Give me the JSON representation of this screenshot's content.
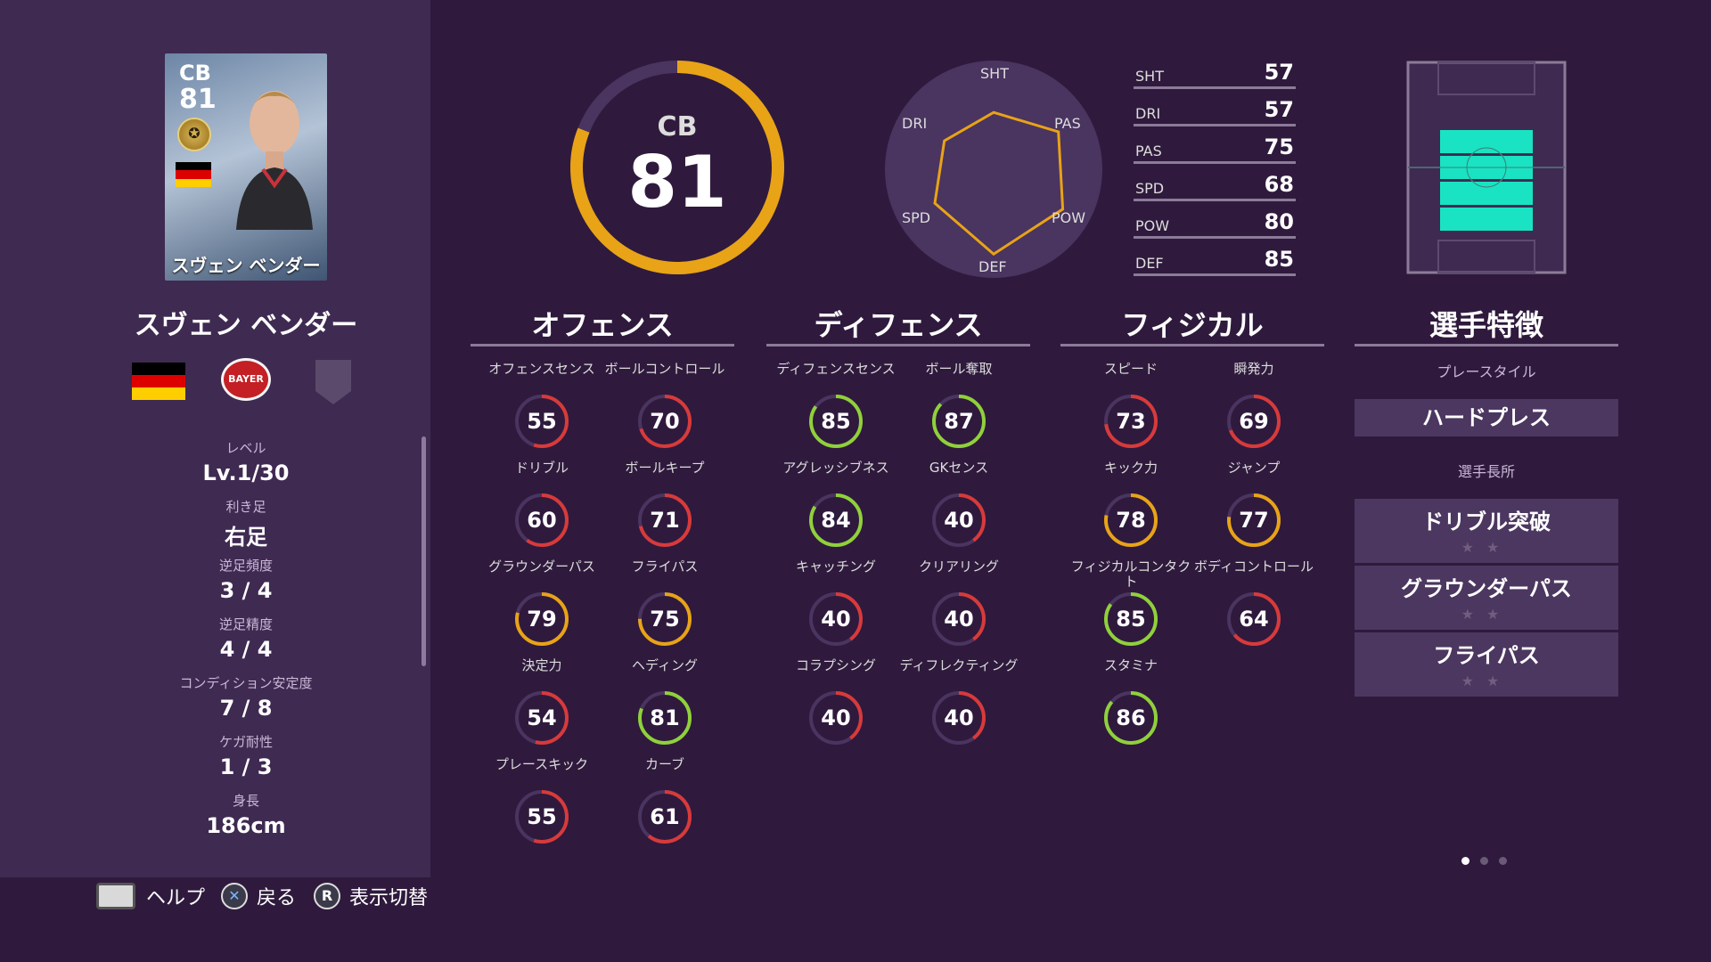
{
  "card": {
    "position": "CB",
    "overall": "81",
    "name": "スヴェン ベンダー",
    "flag_colors": [
      "#000000",
      "#dd0000",
      "#ffce00"
    ]
  },
  "player": {
    "name": "スヴェン ベンダー",
    "club_badge_text": "BAYER",
    "info": [
      {
        "label": "レベル",
        "value": "Lv.1/30"
      },
      {
        "label": "利き足",
        "value": "右足"
      },
      {
        "label": "逆足頻度",
        "value": "3 / 4"
      },
      {
        "label": "逆足精度",
        "value": "4 / 4"
      },
      {
        "label": "コンディション安定度",
        "value": "7 / 8"
      },
      {
        "label": "ケガ耐性",
        "value": "1 / 3"
      },
      {
        "label": "身長",
        "value": "186cm"
      }
    ]
  },
  "overall": {
    "position": "CB",
    "value": "81",
    "ring_fraction": 0.81,
    "ring_color": "#e8a317"
  },
  "radar": {
    "labels": {
      "sht": "SHT",
      "pas": "PAS",
      "pow": "POW",
      "def": "DEF",
      "spd": "SPD",
      "dri": "DRI"
    }
  },
  "chart_data": {
    "type": "radar",
    "categories": [
      "SHT",
      "PAS",
      "POW",
      "DEF",
      "SPD",
      "DRI"
    ],
    "values": [
      57,
      75,
      80,
      85,
      68,
      57
    ],
    "ylim": [
      0,
      100
    ]
  },
  "stats": [
    {
      "key": "SHT",
      "value": "57"
    },
    {
      "key": "DRI",
      "value": "57"
    },
    {
      "key": "PAS",
      "value": "75"
    },
    {
      "key": "SPD",
      "value": "68"
    },
    {
      "key": "POW",
      "value": "80"
    },
    {
      "key": "DEF",
      "value": "85"
    }
  ],
  "sections": {
    "offense": "オフェンス",
    "defense": "ディフェンス",
    "physical": "フィジカル",
    "traits": "選手特徴"
  },
  "offense_skills": [
    {
      "label": "オフェンスセンス",
      "value": "55"
    },
    {
      "label": "ボールコントロール",
      "value": "70"
    },
    {
      "label": "ドリブル",
      "value": "60"
    },
    {
      "label": "ボールキープ",
      "value": "71"
    },
    {
      "label": "グラウンダーパス",
      "value": "79"
    },
    {
      "label": "フライパス",
      "value": "75"
    },
    {
      "label": "決定力",
      "value": "54"
    },
    {
      "label": "ヘディング",
      "value": "81"
    },
    {
      "label": "プレースキック",
      "value": "55"
    },
    {
      "label": "カーブ",
      "value": "61"
    }
  ],
  "defense_skills": [
    {
      "label": "ディフェンスセンス",
      "value": "85"
    },
    {
      "label": "ボール奪取",
      "value": "87"
    },
    {
      "label": "アグレッシブネス",
      "value": "84"
    },
    {
      "label": "GKセンス",
      "value": "40"
    },
    {
      "label": "キャッチング",
      "value": "40"
    },
    {
      "label": "クリアリング",
      "value": "40"
    },
    {
      "label": "コラプシング",
      "value": "40"
    },
    {
      "label": "ディフレクティング",
      "value": "40"
    }
  ],
  "physical_skills": [
    {
      "label": "スピード",
      "value": "73"
    },
    {
      "label": "瞬発力",
      "value": "69"
    },
    {
      "label": "キック力",
      "value": "78"
    },
    {
      "label": "ジャンプ",
      "value": "77"
    },
    {
      "label": "フィジカルコンタクト",
      "value": "85"
    },
    {
      "label": "ボディコントロール",
      "value": "64"
    },
    {
      "label": "スタミナ",
      "value": "86"
    }
  ],
  "traits": {
    "playstyle_label": "プレースタイル",
    "playstyle": "ハードプレス",
    "strengths_label": "選手長所",
    "strengths": [
      "ドリブル突破",
      "グラウンダーパス",
      "フライパス"
    ],
    "stars": "★★"
  },
  "colors": {
    "red": "#d83a3a",
    "orange": "#e8a317",
    "green": "#8fd13a",
    "pitch_highlight": "#19e3c3"
  },
  "footer": {
    "help": "ヘルプ",
    "back": "戻る",
    "toggle": "表示切替",
    "r_key": "R",
    "x_key": "✕"
  }
}
